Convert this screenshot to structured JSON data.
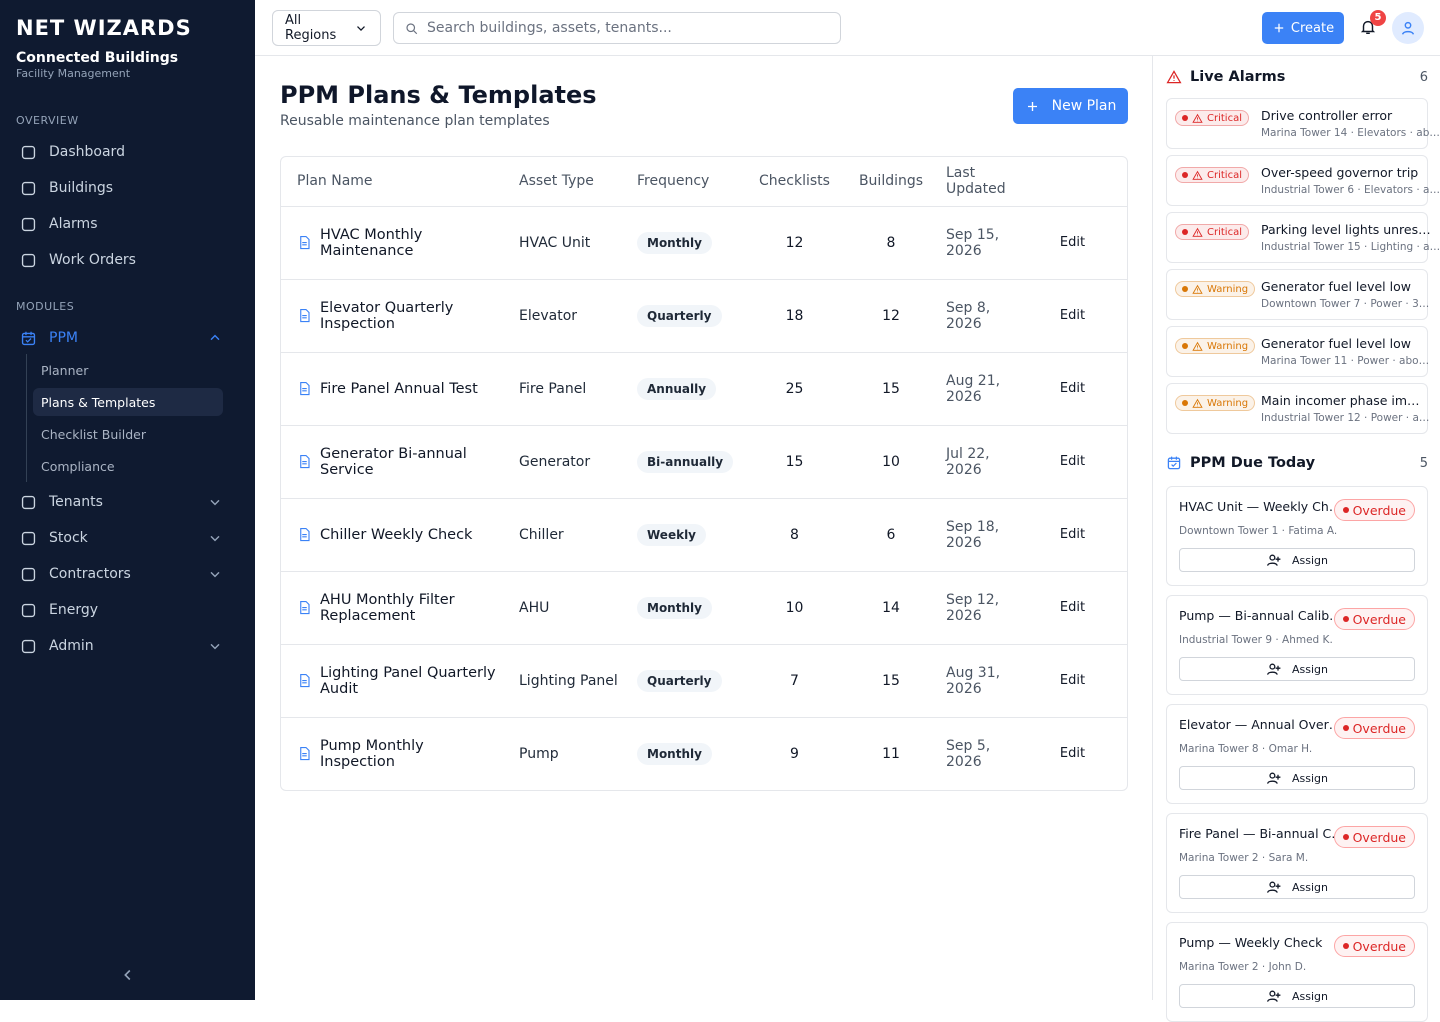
{
  "sidebar": {
    "brand": "NET WIZARDS",
    "org": "Connected Buildings",
    "org_sub": "Facility Management",
    "sections": [
      {
        "title": "OVERVIEW",
        "items": [
          {
            "label": "Dashboard"
          },
          {
            "label": "Buildings"
          },
          {
            "label": "Alarms"
          },
          {
            "label": "Work Orders"
          }
        ]
      },
      {
        "title": "MODULES",
        "items": [
          {
            "label": "PPM",
            "active": true,
            "expandable": true,
            "children": [
              {
                "label": "Planner"
              },
              {
                "label": "Plans & Templates",
                "active": true
              },
              {
                "label": "Checklist Builder"
              },
              {
                "label": "Compliance"
              }
            ]
          },
          {
            "label": "Tenants",
            "expandable": true
          },
          {
            "label": "Stock",
            "expandable": true
          },
          {
            "label": "Contractors",
            "expandable": true
          },
          {
            "label": "Energy"
          },
          {
            "label": "Admin",
            "expandable": true
          }
        ]
      }
    ]
  },
  "topbar": {
    "region": "All Regions",
    "search_placeholder": "Search buildings, assets, tenants...",
    "create": "Create",
    "notifications": 5
  },
  "page": {
    "title": "PPM Plans & Templates",
    "subtitle": "Reusable maintenance plan templates",
    "new_plan": "New Plan"
  },
  "table": {
    "headers": [
      "Plan Name",
      "Asset Type",
      "Frequency",
      "Checklists",
      "Buildings",
      "Last Updated"
    ],
    "rows": [
      {
        "name": "HVAC Monthly Maintenance",
        "asset": "HVAC Unit",
        "frequency": "Monthly",
        "checklists": 12,
        "buildings": 8,
        "updated": "Sep 15, 2026",
        "action": "Edit"
      },
      {
        "name": "Elevator Quarterly Inspection",
        "asset": "Elevator",
        "frequency": "Quarterly",
        "checklists": 18,
        "buildings": 12,
        "updated": "Sep 8, 2026",
        "action": "Edit"
      },
      {
        "name": "Fire Panel Annual Test",
        "asset": "Fire Panel",
        "frequency": "Annually",
        "checklists": 25,
        "buildings": 15,
        "updated": "Aug 21, 2026",
        "action": "Edit"
      },
      {
        "name": "Generator Bi-annual Service",
        "asset": "Generator",
        "frequency": "Bi-annually",
        "checklists": 15,
        "buildings": 10,
        "updated": "Jul 22, 2026",
        "action": "Edit"
      },
      {
        "name": "Chiller Weekly Check",
        "asset": "Chiller",
        "frequency": "Weekly",
        "checklists": 8,
        "buildings": 6,
        "updated": "Sep 18, 2026",
        "action": "Edit"
      },
      {
        "name": "AHU Monthly Filter Replacement",
        "asset": "AHU",
        "frequency": "Monthly",
        "checklists": 10,
        "buildings": 14,
        "updated": "Sep 12, 2026",
        "action": "Edit"
      },
      {
        "name": "Lighting Panel Quarterly Audit",
        "asset": "Lighting Panel",
        "frequency": "Quarterly",
        "checklists": 7,
        "buildings": 15,
        "updated": "Aug 31, 2026",
        "action": "Edit"
      },
      {
        "name": "Pump Monthly Inspection",
        "asset": "Pump",
        "frequency": "Monthly",
        "checklists": 9,
        "buildings": 11,
        "updated": "Sep 5, 2026",
        "action": "Edit"
      }
    ]
  },
  "alarms": {
    "title": "Live Alarms",
    "count": 6,
    "items": [
      {
        "severity": "Critical",
        "color": "#dc2626",
        "title": "Drive controller error",
        "meta": "Marina Tower 14 · Elevators · ab…"
      },
      {
        "severity": "Critical",
        "color": "#dc2626",
        "title": "Over-speed governor trip",
        "meta": "Industrial Tower 6 · Elevators · a…"
      },
      {
        "severity": "Critical",
        "color": "#dc2626",
        "title": "Parking level lights unres…",
        "meta": "Industrial Tower 15 · Lighting · a…"
      },
      {
        "severity": "Warning",
        "color": "#d97706",
        "title": "Generator fuel level low",
        "meta": "Downtown Tower 7 · Power · 3…"
      },
      {
        "severity": "Warning",
        "color": "#d97706",
        "title": "Generator fuel level low",
        "meta": "Marina Tower 11 · Power · abo…"
      },
      {
        "severity": "Warning",
        "color": "#d97706",
        "title": "Main incomer phase im…",
        "meta": "Industrial Tower 12 · Power · a…"
      }
    ]
  },
  "ppm_due": {
    "title": "PPM Due Today",
    "count": 5,
    "items": [
      {
        "title": "HVAC Unit — Weekly Ch…",
        "status": "Overdue",
        "meta": "Downtown Tower 1 · Fatima A.",
        "action": "Assign"
      },
      {
        "title": "Pump — Bi-annual Calib…",
        "status": "Overdue",
        "meta": "Industrial Tower 9 · Ahmed K.",
        "action": "Assign"
      },
      {
        "title": "Elevator — Annual Over…",
        "status": "Overdue",
        "meta": "Marina Tower 8 · Omar H.",
        "action": "Assign"
      },
      {
        "title": "Fire Panel — Bi-annual C…",
        "status": "Overdue",
        "meta": "Marina Tower 2 · Sara M.",
        "action": "Assign"
      },
      {
        "title": "Pump — Weekly Check",
        "status": "Overdue",
        "meta": "Marina Tower 2 · John D.",
        "action": "Assign"
      }
    ]
  }
}
